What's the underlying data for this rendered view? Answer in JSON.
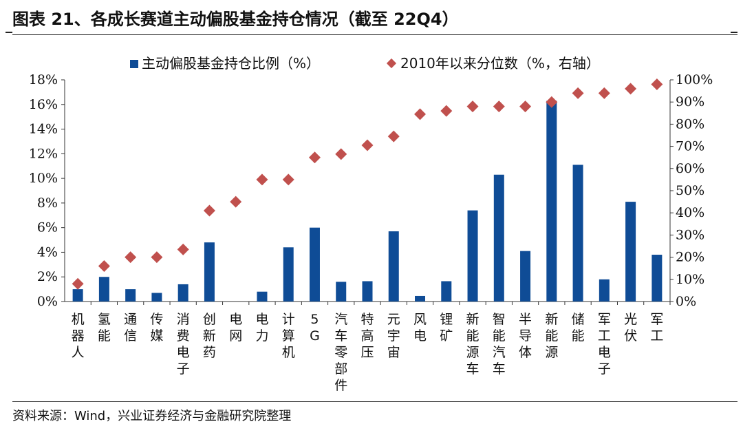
{
  "header": {
    "title": "图表 21、各成长赛道主动偏股基金持仓情况（截至 22Q4）"
  },
  "footer": {
    "source": "资料来源：Wind，兴业证券经济与金融研究院整理"
  },
  "colors": {
    "bar": "#0f4c96",
    "marker": "#c0504d",
    "axis": "#333333"
  },
  "chart_data": {
    "type": "bar+scatter",
    "categories": [
      "机器人",
      "氢能",
      "通信",
      "传媒",
      "消费电子",
      "创新药",
      "电网",
      "电力",
      "计算机",
      "5G",
      "汽车零部件",
      "特高压",
      "元宇宙",
      "风电",
      "锂矿",
      "新能源车",
      "智能汽车",
      "半导体",
      "新能源",
      "储能",
      "军工电子",
      "光伏",
      "军工"
    ],
    "series": [
      {
        "name": "主动偏股基金持仓比例（%）",
        "axis": "left",
        "type": "bar",
        "values": [
          1.0,
          2.0,
          1.0,
          0.7,
          1.4,
          4.8,
          0.0,
          0.8,
          4.4,
          6.0,
          1.6,
          1.65,
          5.7,
          0.45,
          1.65,
          7.4,
          10.3,
          4.1,
          16.3,
          11.1,
          1.8,
          8.1,
          3.8
        ]
      },
      {
        "name": "2010年以来分位数（%，右轴）",
        "axis": "right",
        "type": "scatter",
        "values": [
          8,
          16,
          20,
          20,
          23.5,
          41,
          45,
          55,
          55,
          65,
          66.5,
          70.5,
          74.5,
          84.5,
          86,
          88,
          88,
          88,
          90,
          94,
          94,
          96,
          98
        ]
      }
    ],
    "yleft": {
      "min": 0,
      "max": 18,
      "step": 2,
      "ticks": [
        "0%",
        "2%",
        "4%",
        "6%",
        "8%",
        "10%",
        "12%",
        "14%",
        "16%",
        "18%"
      ]
    },
    "yright": {
      "min": 0,
      "max": 100,
      "step": 10,
      "ticks": [
        "0%",
        "10%",
        "20%",
        "30%",
        "40%",
        "50%",
        "60%",
        "70%",
        "80%",
        "90%",
        "100%"
      ]
    },
    "legend_position": "top-center",
    "grid": false
  }
}
